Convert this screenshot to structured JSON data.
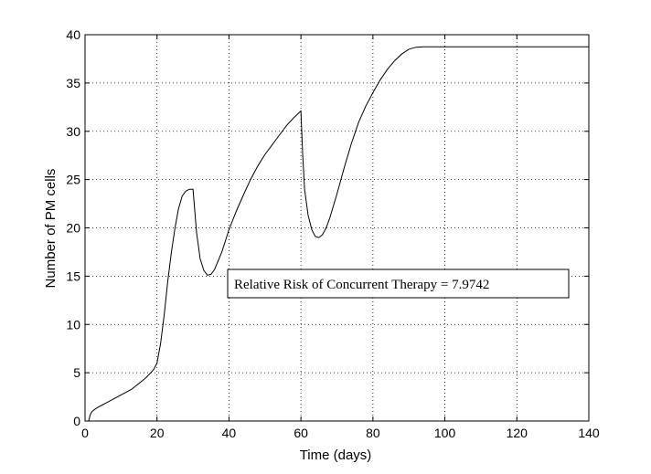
{
  "chart_data": {
    "type": "line",
    "title": "",
    "xlabel": "Time (days)",
    "ylabel": "Number of PM cells",
    "xlim": [
      0,
      140
    ],
    "ylim": [
      0,
      40
    ],
    "xticks": [
      0,
      20,
      40,
      60,
      80,
      100,
      120,
      140
    ],
    "yticks": [
      0,
      5,
      10,
      15,
      20,
      25,
      30,
      35,
      40
    ],
    "grid": true,
    "annotation": "Relative Risk of Concurrent Therapy = 7.9742",
    "series": [
      {
        "name": "",
        "x": [
          1,
          1.5,
          2,
          3,
          4,
          5,
          6,
          7,
          8,
          9,
          10,
          11,
          12,
          13,
          14,
          15,
          16,
          17,
          18,
          19,
          20,
          21,
          22,
          23,
          24,
          25,
          26,
          27,
          28,
          29,
          30,
          31,
          32,
          33,
          34,
          35,
          36,
          38,
          40,
          42,
          44,
          46,
          48,
          50,
          52,
          54,
          56,
          58,
          60,
          60.5,
          61,
          62,
          63,
          64,
          65,
          66,
          67,
          68,
          70,
          72,
          74,
          76,
          78,
          80,
          82,
          84,
          86,
          88,
          90,
          92,
          94,
          96,
          98,
          100,
          110,
          120,
          130,
          140
        ],
        "y": [
          0,
          0.7,
          1.0,
          1.3,
          1.5,
          1.7,
          1.9,
          2.1,
          2.3,
          2.5,
          2.7,
          2.9,
          3.1,
          3.3,
          3.6,
          3.9,
          4.2,
          4.5,
          4.9,
          5.3,
          6.0,
          8.0,
          11.0,
          14.5,
          17.5,
          20.0,
          22.0,
          23.3,
          23.8,
          24.0,
          24.0,
          19.5,
          16.8,
          15.6,
          15.1,
          15.2,
          15.7,
          17.5,
          19.8,
          21.7,
          23.4,
          25.0,
          26.4,
          27.6,
          28.6,
          29.6,
          30.6,
          31.4,
          32.1,
          27.5,
          24.0,
          21.3,
          19.8,
          19.1,
          19.0,
          19.3,
          20.0,
          21.0,
          23.5,
          26.2,
          28.7,
          30.9,
          32.6,
          34.0,
          35.3,
          36.4,
          37.3,
          38.0,
          38.5,
          38.7,
          38.75,
          38.75,
          38.75,
          38.75,
          38.75,
          38.75,
          38.75,
          38.75
        ]
      }
    ]
  }
}
